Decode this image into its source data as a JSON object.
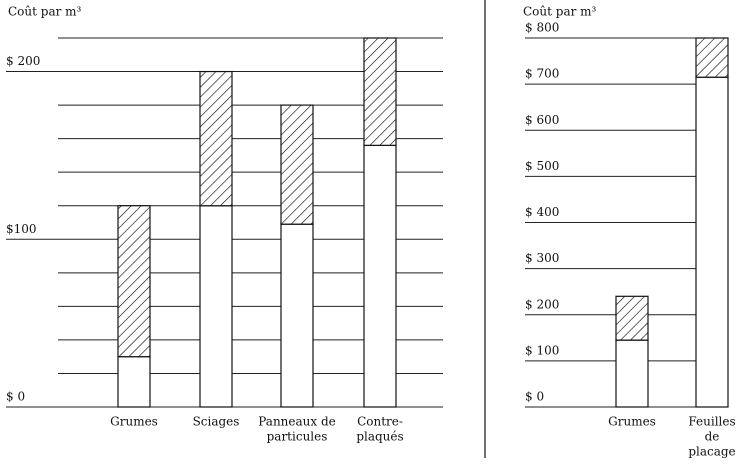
{
  "chart_data": [
    {
      "type": "bar",
      "stacked": true,
      "title": "Coût par m³",
      "categories": [
        [
          "Grumes"
        ],
        [
          "Sciages"
        ],
        [
          "Panneaux de",
          "particules"
        ],
        [
          "Contre-",
          "plaqués"
        ]
      ],
      "series": [
        {
          "color": "#ffffff",
          "values": [
            30,
            120,
            109,
            156
          ]
        },
        {
          "color": "#000000",
          "pattern": "hatch",
          "values": [
            90,
            80,
            71,
            64
          ]
        }
      ],
      "ylim": [
        0,
        220
      ],
      "yticks": [
        {
          "value": 0,
          "label": "$ 0"
        },
        {
          "value": 100,
          "label": "$100"
        },
        {
          "value": 200,
          "label": "$ 200"
        }
      ],
      "grid_yticks": [
        0,
        20,
        40,
        60,
        80,
        100,
        120,
        140,
        160,
        180,
        200,
        220
      ]
    },
    {
      "type": "bar",
      "stacked": true,
      "title": "Coût par m³",
      "categories": [
        [
          "Grumes"
        ],
        [
          "Feuilles",
          "de",
          "placage"
        ]
      ],
      "series": [
        {
          "color": "#ffffff",
          "values": [
            145,
            715
          ]
        },
        {
          "color": "#000000",
          "pattern": "hatch",
          "values": [
            95,
            85
          ]
        }
      ],
      "ylim": [
        0,
        800
      ],
      "yticks": [
        {
          "value": 0,
          "label": "$ 0"
        },
        {
          "value": 100,
          "label": "$ 100"
        },
        {
          "value": 200,
          "label": "$ 200"
        },
        {
          "value": 300,
          "label": "$ 300"
        },
        {
          "value": 400,
          "label": "$ 400"
        },
        {
          "value": 500,
          "label": "$ 500"
        },
        {
          "value": 600,
          "label": "$ 600"
        },
        {
          "value": 700,
          "label": "$ 700"
        },
        {
          "value": 800,
          "label": "$ 800"
        }
      ],
      "grid_yticks": [
        0,
        100,
        200,
        300,
        400,
        500,
        600,
        700,
        800
      ]
    }
  ]
}
